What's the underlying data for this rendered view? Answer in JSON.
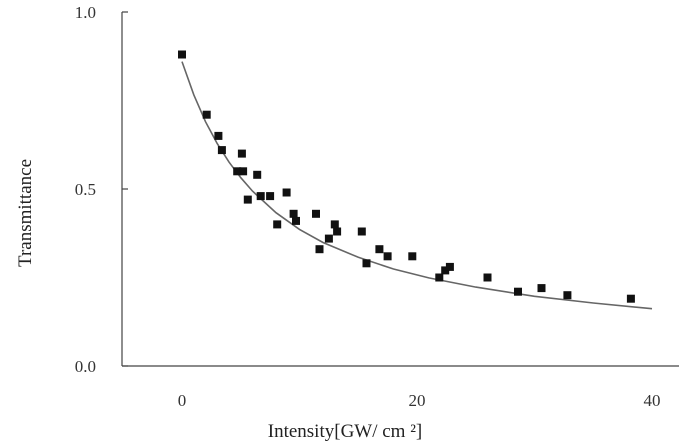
{
  "chart_data": {
    "type": "scatter",
    "title": "",
    "xlabel": "Intensity[GW/ cm ²]",
    "ylabel": "Transmittance",
    "xlim": [
      0,
      40
    ],
    "ylim": [
      0.0,
      1.0
    ],
    "x_ticks": [
      "0",
      "20",
      "40"
    ],
    "y_ticks": [
      "0.0",
      "0.5",
      "1.0"
    ],
    "grid": false,
    "marker": "square",
    "marker_color": "#111111",
    "fit_color": "#666666",
    "points": [
      {
        "x": 0.0,
        "y": 0.88
      },
      {
        "x": 2.1,
        "y": 0.71
      },
      {
        "x": 3.1,
        "y": 0.65
      },
      {
        "x": 3.4,
        "y": 0.61
      },
      {
        "x": 4.7,
        "y": 0.55
      },
      {
        "x": 5.1,
        "y": 0.6
      },
      {
        "x": 5.2,
        "y": 0.55
      },
      {
        "x": 5.6,
        "y": 0.47
      },
      {
        "x": 6.4,
        "y": 0.54
      },
      {
        "x": 6.7,
        "y": 0.48
      },
      {
        "x": 7.5,
        "y": 0.48
      },
      {
        "x": 8.1,
        "y": 0.4
      },
      {
        "x": 8.9,
        "y": 0.49
      },
      {
        "x": 9.5,
        "y": 0.43
      },
      {
        "x": 9.7,
        "y": 0.41
      },
      {
        "x": 11.4,
        "y": 0.43
      },
      {
        "x": 11.7,
        "y": 0.33
      },
      {
        "x": 12.5,
        "y": 0.36
      },
      {
        "x": 13.0,
        "y": 0.4
      },
      {
        "x": 13.2,
        "y": 0.38
      },
      {
        "x": 15.3,
        "y": 0.38
      },
      {
        "x": 15.7,
        "y": 0.29
      },
      {
        "x": 16.8,
        "y": 0.33
      },
      {
        "x": 17.5,
        "y": 0.31
      },
      {
        "x": 19.6,
        "y": 0.31
      },
      {
        "x": 21.9,
        "y": 0.25
      },
      {
        "x": 22.4,
        "y": 0.27
      },
      {
        "x": 22.8,
        "y": 0.28
      },
      {
        "x": 26.0,
        "y": 0.25
      },
      {
        "x": 28.6,
        "y": 0.21
      },
      {
        "x": 30.6,
        "y": 0.22
      },
      {
        "x": 32.8,
        "y": 0.2
      },
      {
        "x": 38.2,
        "y": 0.19
      }
    ],
    "fit_curve": [
      {
        "x": 0.0,
        "y": 0.86
      },
      {
        "x": 1.0,
        "y": 0.766
      },
      {
        "x": 2.0,
        "y": 0.69
      },
      {
        "x": 3.0,
        "y": 0.628
      },
      {
        "x": 4.0,
        "y": 0.576
      },
      {
        "x": 5.0,
        "y": 0.532
      },
      {
        "x": 6.0,
        "y": 0.494
      },
      {
        "x": 8.0,
        "y": 0.433
      },
      {
        "x": 10.0,
        "y": 0.386
      },
      {
        "x": 12.0,
        "y": 0.349
      },
      {
        "x": 15.0,
        "y": 0.307
      },
      {
        "x": 18.0,
        "y": 0.274
      },
      {
        "x": 21.0,
        "y": 0.249
      },
      {
        "x": 25.0,
        "y": 0.223
      },
      {
        "x": 30.0,
        "y": 0.197
      },
      {
        "x": 35.0,
        "y": 0.178
      },
      {
        "x": 40.0,
        "y": 0.162
      }
    ]
  }
}
